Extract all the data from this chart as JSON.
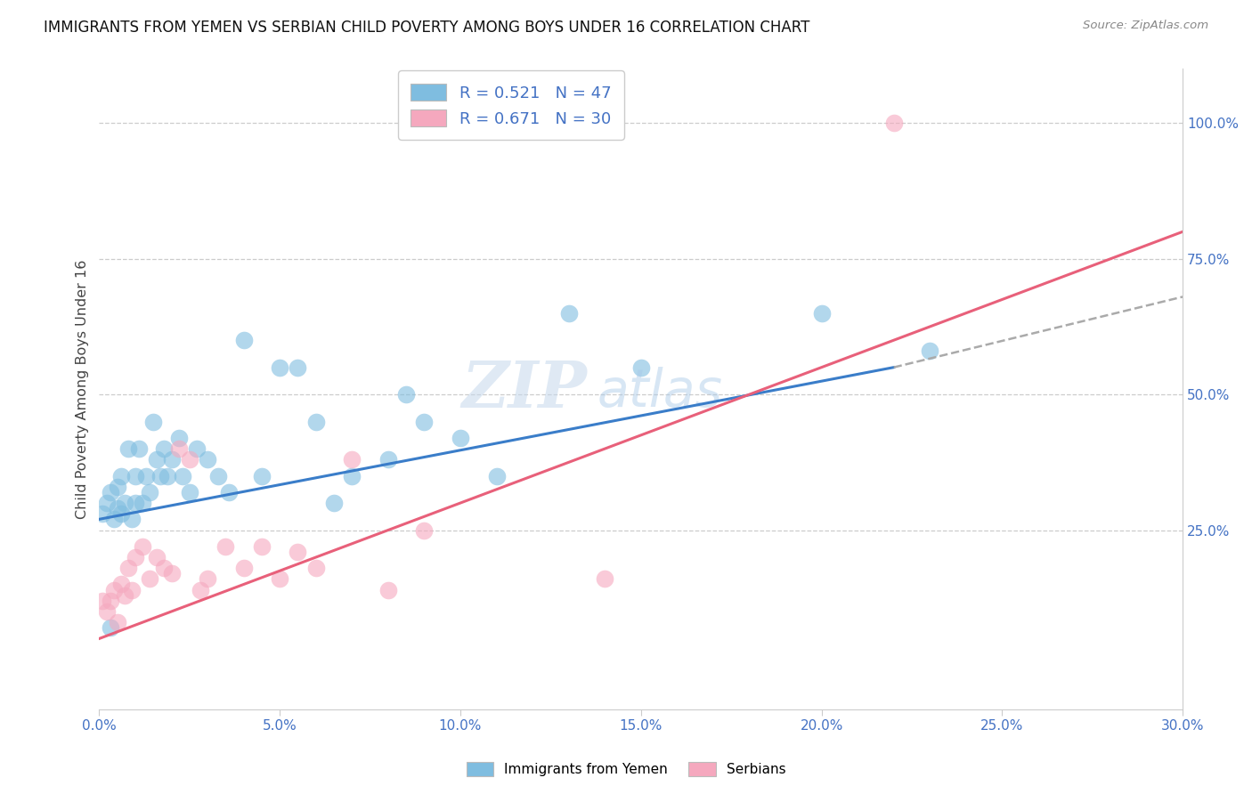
{
  "title": "IMMIGRANTS FROM YEMEN VS SERBIAN CHILD POVERTY AMONG BOYS UNDER 16 CORRELATION CHART",
  "source": "Source: ZipAtlas.com",
  "ylabel": "Child Poverty Among Boys Under 16",
  "xlim": [
    0.0,
    0.3
  ],
  "ylim": [
    -0.08,
    1.1
  ],
  "x_tick_labels": [
    "0.0%",
    "5.0%",
    "10.0%",
    "15.0%",
    "20.0%",
    "25.0%",
    "30.0%"
  ],
  "x_tick_vals": [
    0.0,
    0.05,
    0.1,
    0.15,
    0.2,
    0.25,
    0.3
  ],
  "y_tick_labels": [
    "25.0%",
    "50.0%",
    "75.0%",
    "100.0%"
  ],
  "y_tick_vals": [
    0.25,
    0.5,
    0.75,
    1.0
  ],
  "blue_color": "#7fbde0",
  "pink_color": "#f5a8be",
  "blue_line_color": "#3a7dc9",
  "pink_line_color": "#e8607a",
  "watermark_zip": "ZIP",
  "watermark_atlas": "atlas",
  "blue_scatter_x": [
    0.001,
    0.002,
    0.003,
    0.004,
    0.005,
    0.005,
    0.006,
    0.006,
    0.007,
    0.008,
    0.009,
    0.01,
    0.01,
    0.011,
    0.012,
    0.013,
    0.014,
    0.015,
    0.016,
    0.017,
    0.018,
    0.019,
    0.02,
    0.022,
    0.023,
    0.025,
    0.027,
    0.03,
    0.033,
    0.036,
    0.04,
    0.045,
    0.05,
    0.055,
    0.06,
    0.065,
    0.07,
    0.08,
    0.085,
    0.09,
    0.1,
    0.11,
    0.13,
    0.15,
    0.2,
    0.23,
    0.003
  ],
  "blue_scatter_y": [
    0.28,
    0.3,
    0.32,
    0.27,
    0.33,
    0.29,
    0.35,
    0.28,
    0.3,
    0.4,
    0.27,
    0.3,
    0.35,
    0.4,
    0.3,
    0.35,
    0.32,
    0.45,
    0.38,
    0.35,
    0.4,
    0.35,
    0.38,
    0.42,
    0.35,
    0.32,
    0.4,
    0.38,
    0.35,
    0.32,
    0.6,
    0.35,
    0.55,
    0.55,
    0.45,
    0.3,
    0.35,
    0.38,
    0.5,
    0.45,
    0.42,
    0.35,
    0.65,
    0.55,
    0.65,
    0.58,
    0.07
  ],
  "pink_scatter_x": [
    0.001,
    0.002,
    0.003,
    0.004,
    0.005,
    0.006,
    0.007,
    0.008,
    0.009,
    0.01,
    0.012,
    0.014,
    0.016,
    0.018,
    0.02,
    0.022,
    0.025,
    0.028,
    0.03,
    0.035,
    0.04,
    0.045,
    0.05,
    0.055,
    0.06,
    0.07,
    0.08,
    0.09,
    0.14,
    0.22
  ],
  "pink_scatter_y": [
    0.12,
    0.1,
    0.12,
    0.14,
    0.08,
    0.15,
    0.13,
    0.18,
    0.14,
    0.2,
    0.22,
    0.16,
    0.2,
    0.18,
    0.17,
    0.4,
    0.38,
    0.14,
    0.16,
    0.22,
    0.18,
    0.22,
    0.16,
    0.21,
    0.18,
    0.38,
    0.14,
    0.25,
    0.16,
    1.0
  ],
  "blue_trend": [
    0.0,
    0.22,
    0.27,
    0.55
  ],
  "pink_trend": [
    0.0,
    0.3,
    0.05,
    0.8
  ],
  "blue_dashed": [
    0.22,
    0.3,
    0.55,
    0.68
  ]
}
